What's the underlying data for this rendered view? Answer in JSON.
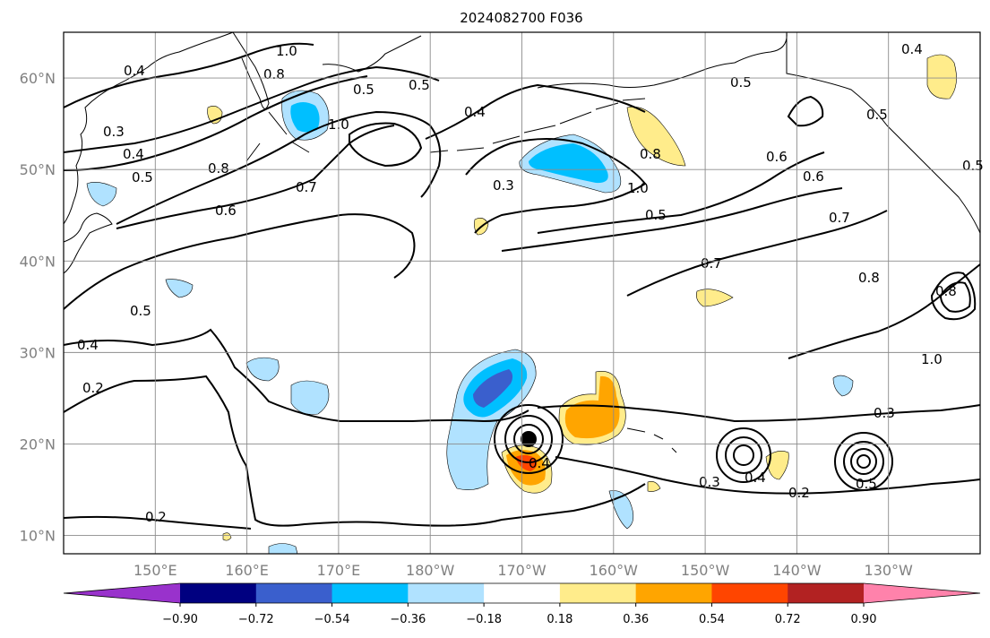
{
  "title": "2024082700 F036",
  "lat_labels": [
    {
      "text": "60°N",
      "lat": 60
    },
    {
      "text": "50°N",
      "lat": 50
    },
    {
      "text": "40°N",
      "lat": 40
    },
    {
      "text": "30°N",
      "lat": 30
    },
    {
      "text": "20°N",
      "lat": 20
    },
    {
      "text": "10°N",
      "lat": 10
    }
  ],
  "lon_labels": [
    {
      "text": "150°E",
      "lon": 150
    },
    {
      "text": "160°E",
      "lon": 160
    },
    {
      "text": "170°E",
      "lon": 170
    },
    {
      "text": "180°W",
      "lon": 180
    },
    {
      "text": "170°W",
      "lon": 190
    },
    {
      "text": "160°W",
      "lon": 200
    },
    {
      "text": "150°W",
      "lon": 210
    },
    {
      "text": "140°W",
      "lon": 220
    },
    {
      "text": "130°W",
      "lon": 230
    }
  ],
  "map_extent": {
    "lon_min": 140,
    "lon_max": 240,
    "lat_min": 8,
    "lat_max": 65
  },
  "colorbar": {
    "colors": [
      "#9932CC",
      "#000080",
      "#3A5FCD",
      "#00BFFF",
      "#B0E2FF",
      "#FFFFFF",
      "#FFEC8B",
      "#FFA500",
      "#FF4500",
      "#B22222",
      "#FF82AB"
    ],
    "ticks": [
      "−0.90",
      "−0.72",
      "−0.54",
      "−0.36",
      "−0.18",
      "0.18",
      "0.36",
      "0.54",
      "0.72",
      "0.90"
    ]
  },
  "contour_labels": [
    "1.0",
    "0.4",
    "0.8",
    "0.3",
    "0.5",
    "0.5",
    "0.5",
    "0.4",
    "1.0",
    "0.5",
    "0.8",
    "0.7",
    "0.6",
    "0.5",
    "0.4",
    "0.2",
    "0.2",
    "0.3",
    "0.4",
    "0.7",
    "0.5",
    "1.0",
    "0.8",
    "0.6",
    "0.6",
    "0.7",
    "0.8",
    "0.8",
    "0.4",
    "0.5",
    "1.0",
    "0.3",
    "0.3",
    "0.4",
    "0.2",
    "0.5",
    "0.5",
    "0.4"
  ]
}
